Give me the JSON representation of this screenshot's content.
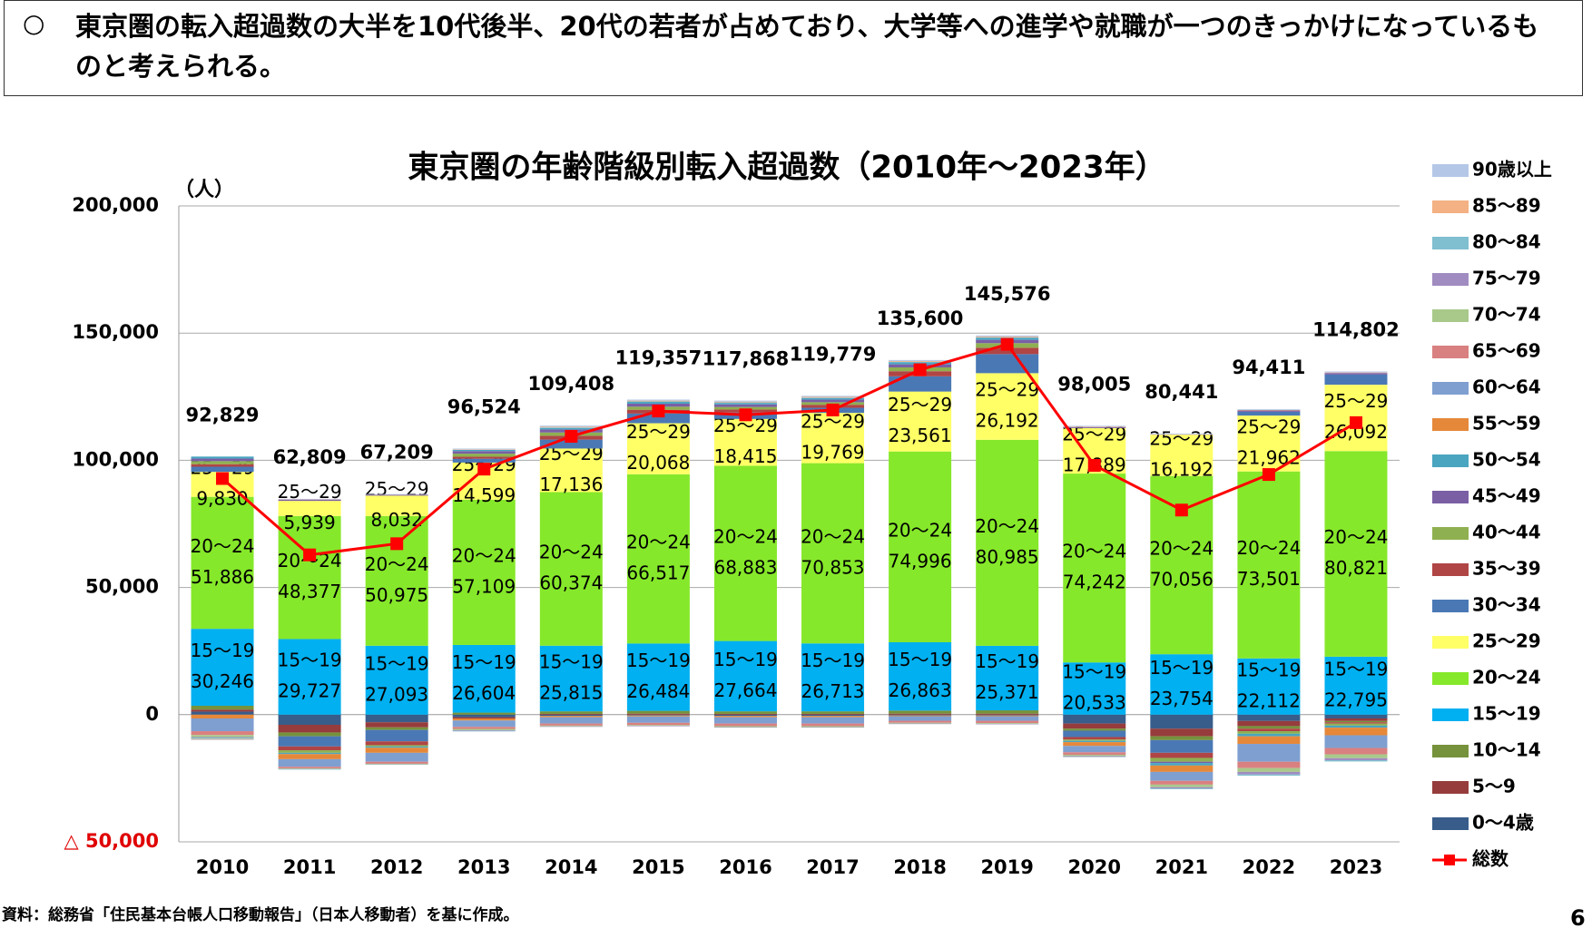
{
  "header": {
    "bullet": "○",
    "text": "東京圏の転入超過数の大半を10代後半、20代の若者が占めており、大学等への進学や就職が一つのきっかけになっているものと考えられる。"
  },
  "chart_data": {
    "type": "stacked-bar-line",
    "title": "東京圏の年齢階級別転入超過数（2010年～2023年）",
    "y_unit": "（人）",
    "categories": [
      "2010",
      "2011",
      "2012",
      "2013",
      "2014",
      "2015",
      "2016",
      "2017",
      "2018",
      "2019",
      "2020",
      "2021",
      "2022",
      "2023"
    ],
    "ylim": [
      -50000,
      200000
    ],
    "yticks": [
      {
        "value": -50000,
        "label": "△ 50,000"
      },
      0,
      {
        "value": 50000,
        "label": "50,000"
      },
      {
        "value": 100000,
        "label": "100,000"
      },
      {
        "value": 150000,
        "label": "150,000"
      },
      {
        "value": 200000,
        "label": "200,000"
      }
    ],
    "grid": true,
    "series": [
      {
        "name": "0～4歳",
        "color": "#385d8a",
        "values": [
          1200,
          -4000,
          -3000,
          -1000,
          -500,
          -300,
          -500,
          -500,
          -300,
          -300,
          -3500,
          -5500,
          -2500,
          -1500
        ]
      },
      {
        "name": "5～9",
        "color": "#963c3c",
        "values": [
          800,
          -3000,
          -2000,
          -500,
          300,
          400,
          300,
          300,
          400,
          400,
          -2000,
          -3000,
          -2000,
          -1000
        ]
      },
      {
        "name": "10～14",
        "color": "#76923c",
        "values": [
          1500,
          -1500,
          -1000,
          800,
          1000,
          1100,
          1000,
          1000,
          1200,
          1300,
          -800,
          -1500,
          -1000,
          -500
        ]
      },
      {
        "name": "15～19",
        "color": "#00b0f0",
        "values": [
          30246,
          29727,
          27093,
          26604,
          25815,
          26484,
          27664,
          26713,
          26863,
          25371,
          20533,
          23754,
          22112,
          22795
        ],
        "value_labels": [
          "30,246",
          "29,727",
          "27,093",
          "26,604",
          "25,815",
          "26,484",
          "27,664",
          "26,713",
          "26,863",
          "25,371",
          "20,533",
          "23,754",
          "22,112",
          "22,795"
        ]
      },
      {
        "name": "20～24",
        "color": "#86e82a",
        "values": [
          51886,
          48377,
          50975,
          57109,
          60374,
          66517,
          68883,
          70853,
          74996,
          80985,
          74242,
          70056,
          73501,
          80821
        ],
        "value_labels": [
          "51,886",
          "48,377",
          "50,975",
          "57,109",
          "60,374",
          "66,517",
          "68,883",
          "70,853",
          "74,996",
          "80,985",
          "74,242",
          "70,056",
          "73,501",
          "80,821"
        ]
      },
      {
        "name": "25～29",
        "color": "#ffff66",
        "values": [
          9830,
          5939,
          8032,
          14599,
          17136,
          20068,
          18415,
          19769,
          23561,
          26192,
          17889,
          16192,
          21962,
          26092
        ],
        "value_labels": [
          "9,830",
          "5,939",
          "8,032",
          "14,599",
          "17,136",
          "20,068",
          "18,415",
          "19,769",
          "23,561",
          "26,192",
          "17,889",
          "16,192",
          "21,962",
          "26,092"
        ]
      },
      {
        "name": "30～34",
        "color": "#4a78b5",
        "values": [
          2000,
          -4000,
          -4500,
          1500,
          3500,
          3800,
          2500,
          2000,
          6000,
          7500,
          -2500,
          -5000,
          1500,
          4000
        ]
      },
      {
        "name": "35～39",
        "color": "#b04545",
        "values": [
          1000,
          -1500,
          -1500,
          800,
          1500,
          1500,
          1200,
          1200,
          2000,
          2500,
          -1000,
          -2000,
          -1000,
          -500
        ]
      },
      {
        "name": "40～44",
        "color": "#8fb050",
        "values": [
          1200,
          -1000,
          -500,
          1200,
          1300,
          1200,
          1000,
          1000,
          1500,
          1800,
          -500,
          -1500,
          -1000,
          -800
        ]
      },
      {
        "name": "45～49",
        "color": "#7a5fa5",
        "values": [
          1000,
          500,
          300,
          1000,
          1200,
          1200,
          1000,
          1000,
          1200,
          1300,
          400,
          -500,
          500,
          600
        ]
      },
      {
        "name": "50～54",
        "color": "#4aa5c0",
        "values": [
          800,
          -500,
          -500,
          500,
          600,
          700,
          600,
          600,
          800,
          800,
          -500,
          -1000,
          -1000,
          -800
        ]
      },
      {
        "name": "55～59",
        "color": "#e5883a",
        "values": [
          -1500,
          -2000,
          -2000,
          -800,
          -500,
          -400,
          -500,
          -500,
          -300,
          -300,
          -1500,
          -2500,
          -3000,
          -3000
        ]
      },
      {
        "name": "60～64",
        "color": "#7f9fd0",
        "values": [
          -5000,
          -3000,
          -3500,
          -2500,
          -2500,
          -2500,
          -2500,
          -2500,
          -1800,
          -1800,
          -2500,
          -3500,
          -7000,
          -5000
        ]
      },
      {
        "name": "65～69",
        "color": "#d98080",
        "values": [
          -1500,
          -600,
          -800,
          -800,
          -800,
          -900,
          -1000,
          -1000,
          -800,
          -900,
          -1000,
          -1500,
          -2500,
          -2500
        ]
      },
      {
        "name": "70～74",
        "color": "#a9c98a",
        "values": [
          -800,
          -200,
          -200,
          -500,
          -300,
          -300,
          -400,
          -400,
          -300,
          -300,
          -500,
          -1000,
          -1500,
          -1500
        ]
      },
      {
        "name": "75～79",
        "color": "#a08cc0",
        "values": [
          -200,
          -100,
          -100,
          -300,
          -200,
          -200,
          -200,
          -200,
          -200,
          -200,
          -300,
          -500,
          -1000,
          -800
        ]
      },
      {
        "name": "80～84",
        "color": "#7fbfcf",
        "values": [
          -500,
          -200,
          -100,
          -200,
          200,
          200,
          200,
          200,
          200,
          200,
          -100,
          -300,
          -500,
          -500
        ]
      },
      {
        "name": "85～89",
        "color": "#f4b183",
        "values": [
          -300,
          100,
          100,
          200,
          300,
          300,
          300,
          300,
          300,
          300,
          200,
          200,
          200,
          200
        ]
      },
      {
        "name": "90歳以上",
        "color": "#b4c7e7",
        "values": [
          -200,
          200,
          200,
          300,
          400,
          400,
          400,
          400,
          400,
          400,
          300,
          300,
          300,
          400
        ]
      },
      {
        "name": "総数",
        "type": "line",
        "color": "#ff0000",
        "values": [
          92829,
          62809,
          67209,
          96524,
          109408,
          119357,
          117868,
          119779,
          135600,
          145576,
          98005,
          80441,
          94411,
          114802
        ],
        "value_labels": [
          "92,829",
          "62,809",
          "67,209",
          "96,524",
          "109,408",
          "119,357",
          "117,868",
          "119,779",
          "135,600",
          "145,576",
          "98,005",
          "80,441",
          "94,411",
          "114,802"
        ]
      }
    ]
  },
  "source": "資料：総務省「住民基本台帳人口移動報告」（日本人移動者）を基に作成。",
  "page_number": "6"
}
